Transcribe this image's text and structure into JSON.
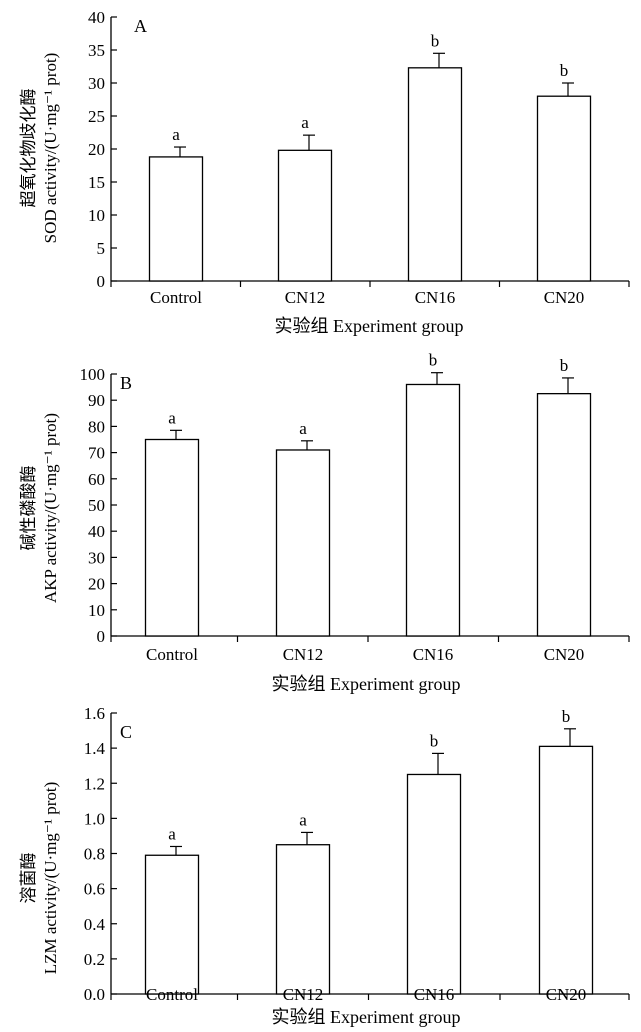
{
  "chart_data": [
    {
      "type": "bar",
      "panel_label": "A",
      "categories": [
        "Control",
        "CN12",
        "CN16",
        "CN20"
      ],
      "values": [
        18.8,
        19.8,
        32.3,
        28.0
      ],
      "errors": [
        1.5,
        2.3,
        2.2,
        2.0
      ],
      "significance": [
        "a",
        "a",
        "b",
        "b"
      ],
      "xlabel": "实验组 Experiment group",
      "ylabel_cn": "超氧化物歧化酶",
      "ylabel_en": "SOD activity/(U·mg⁻¹ prot)",
      "ylim": [
        0,
        40
      ],
      "yticks": [
        0,
        5,
        10,
        15,
        20,
        25,
        30,
        35,
        40
      ],
      "ytick_labels": [
        "0",
        "5",
        "10",
        "15",
        "20",
        "25",
        "30",
        "35",
        "40"
      ]
    },
    {
      "type": "bar",
      "panel_label": "B",
      "categories": [
        "Control",
        "CN12",
        "CN16",
        "CN20"
      ],
      "values": [
        75.0,
        71.0,
        96.0,
        92.5
      ],
      "errors": [
        3.5,
        3.5,
        4.5,
        6.0
      ],
      "significance": [
        "a",
        "a",
        "b",
        "b"
      ],
      "xlabel": "实验组 Experiment group",
      "ylabel_cn": "碱性磷酸酶",
      "ylabel_en": "AKP activity/(U·mg⁻¹ prot)",
      "ylim": [
        0,
        100
      ],
      "yticks": [
        0,
        10,
        20,
        30,
        40,
        50,
        60,
        70,
        80,
        90,
        100
      ],
      "ytick_labels": [
        "0",
        "10",
        "20",
        "30",
        "40",
        "50",
        "60",
        "70",
        "80",
        "90",
        "100"
      ]
    },
    {
      "type": "bar",
      "panel_label": "C",
      "categories": [
        "Control",
        "CN12",
        "CN16",
        "CN20"
      ],
      "values": [
        0.79,
        0.85,
        1.25,
        1.41
      ],
      "errors": [
        0.05,
        0.07,
        0.12,
        0.1
      ],
      "significance": [
        "a",
        "a",
        "b",
        "b"
      ],
      "xlabel": "实验组 Experiment group",
      "ylabel_cn": "溶菌酶",
      "ylabel_en": "LZM activity/(U·mg⁻¹ prot)",
      "ylim": [
        0,
        1.6
      ],
      "yticks": [
        0,
        0.2,
        0.4,
        0.6,
        0.8,
        1.0,
        1.2,
        1.4,
        1.6
      ],
      "ytick_labels": [
        "0.0",
        "0.2",
        "0.4",
        "0.6",
        "0.8",
        "1.0",
        "1.2",
        "1.4",
        "1.6"
      ]
    }
  ]
}
